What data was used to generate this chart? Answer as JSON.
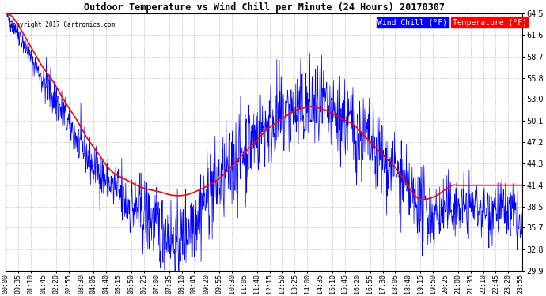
{
  "title": "Outdoor Temperature vs Wind Chill per Minute (24 Hours) 20170307",
  "copyright_text": "Copyright 2017 Cartronics.com",
  "legend_wind_chill": "Wind Chill (°F)",
  "legend_temperature": "Temperature (°F)",
  "wind_chill_color": "#0000FF",
  "temperature_color": "#FF0000",
  "legend_wc_bg": "#0000FF",
  "legend_temp_bg": "#FF0000",
  "bg_color": "#FFFFFF",
  "plot_bg_color": "#FFFFFF",
  "grid_color": "#AAAAAA",
  "ylim_min": 29.9,
  "ylim_max": 64.5,
  "yticks": [
    29.9,
    32.8,
    35.7,
    38.5,
    41.4,
    44.3,
    47.2,
    50.1,
    53.0,
    55.8,
    58.7,
    61.6,
    64.5
  ],
  "xlabel": "",
  "ylabel": ""
}
